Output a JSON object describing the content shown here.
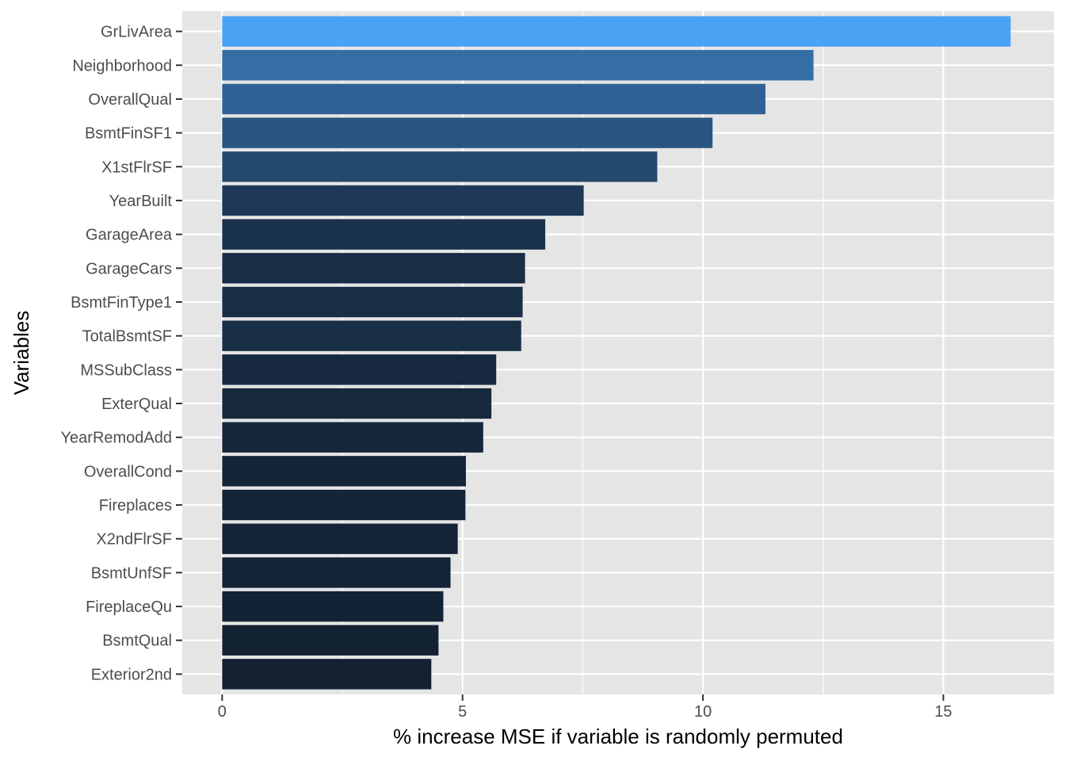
{
  "chart_data": {
    "type": "bar",
    "orientation": "horizontal",
    "title": "",
    "xlabel": "% increase MSE if variable is randomly permuted",
    "ylabel": "Variables",
    "xlim": [
      -0.83,
      17.3
    ],
    "xticks": [
      0,
      5,
      10,
      15
    ],
    "xtick_labels": [
      "0",
      "5",
      "10",
      "15"
    ],
    "grid": true,
    "legend": "none",
    "colors": {
      "panel": "#e5e5e5",
      "grid": "#ffffff",
      "bar_low": "#132132",
      "bar_high": "#4aa2f4"
    },
    "categories": [
      "GrLivArea",
      "Neighborhood",
      "OverallQual",
      "BsmtFinSF1",
      "X1stFlrSF",
      "YearBuilt",
      "GarageArea",
      "GarageCars",
      "BsmtFinType1",
      "TotalBsmtSF",
      "MSSubClass",
      "ExterQual",
      "YearRemodAdd",
      "OverallCond",
      "Fireplaces",
      "X2ndFlrSF",
      "BsmtUnfSF",
      "FireplaceQu",
      "BsmtQual",
      "Exterior2nd"
    ],
    "values": [
      16.4,
      12.3,
      11.3,
      10.2,
      9.05,
      7.52,
      6.72,
      6.3,
      6.25,
      6.22,
      5.7,
      5.6,
      5.43,
      5.07,
      5.06,
      4.9,
      4.75,
      4.6,
      4.5,
      4.35
    ]
  }
}
